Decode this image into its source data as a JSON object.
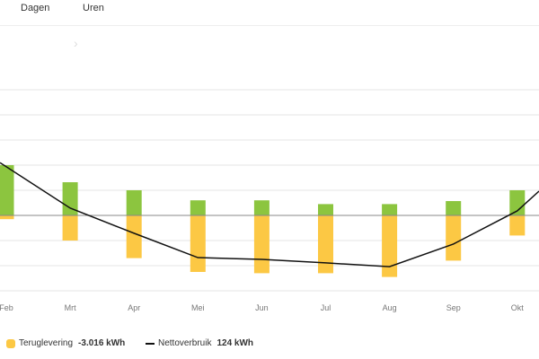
{
  "tabs": [
    {
      "label": "Dagen"
    },
    {
      "label": "Uren"
    }
  ],
  "nav": {
    "icon": "chevron-right-icon"
  },
  "colors": {
    "opwek": "#8cc53f",
    "teruglevering": "#fcc844",
    "netto": "#111111",
    "zero": "#888888",
    "grid": "#e6e6e6"
  },
  "chart_data": {
    "type": "bar",
    "categories": [
      "Feb",
      "Mrt",
      "Apr",
      "Mei",
      "Jun",
      "Jul",
      "Aug",
      "Sep",
      "Okt"
    ],
    "note_units": "relative gridline steps; y-axis values not printed",
    "series": [
      {
        "values": [
          2.0,
          1.32,
          1.0,
          0.6,
          0.6,
          0.45,
          0.45,
          0.57,
          1.0
        ],
        "color": "#8cc53f"
      },
      {
        "name": "Teruglevering",
        "values": [
          -0.15,
          -1.0,
          -1.7,
          -2.25,
          -2.3,
          -2.3,
          -2.45,
          -1.8,
          -0.8
        ],
        "color": "#fcc844"
      },
      {
        "name": "Nettoverbruik",
        "type": "line",
        "values": [
          2.1,
          0.29,
          -0.71,
          -1.68,
          -1.75,
          -1.89,
          -2.04,
          -1.14,
          0.18
        ],
        "color": "#111111"
      }
    ],
    "ylim": [
      -3,
      5
    ],
    "grid": true,
    "legend": "bottom-left"
  },
  "legend": [
    {
      "label": "Teruglevering",
      "value": "-3.016 kWh"
    },
    {
      "label": "Nettoverbruik",
      "value": "124 kWh"
    }
  ]
}
